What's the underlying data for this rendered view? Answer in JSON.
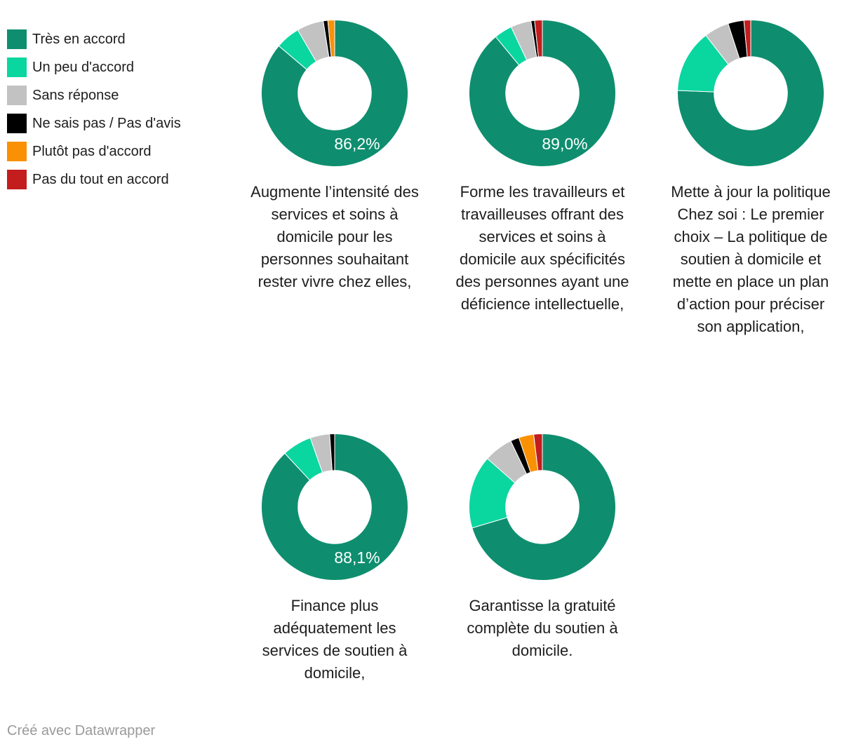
{
  "page": {
    "background": "#ffffff"
  },
  "legend": {
    "items": [
      {
        "label": "Très en accord",
        "color": "#0e8e6f"
      },
      {
        "label": "Un peu d'accord",
        "color": "#0ad6a0"
      },
      {
        "label": "Sans réponse",
        "color": "#c2c2c2"
      },
      {
        "label": "Ne sais pas / Pas d'avis",
        "color": "#000000"
      },
      {
        "label": "Plutôt pas d'accord",
        "color": "#fa9104"
      },
      {
        "label": "Pas du tout en accord",
        "color": "#c41d1d"
      }
    ]
  },
  "chart_data": {
    "type": "pie",
    "variant": "donut-small-multiples",
    "donut_hole_ratio": 0.5,
    "legend_position": "top-left",
    "start_angle": "12-oclock-clockwise",
    "categories": [
      "Très en accord",
      "Un peu d'accord",
      "Sans réponse",
      "Ne sais pas / Pas d'avis",
      "Plutôt pas d'accord",
      "Pas du tout en accord"
    ],
    "colors": [
      "#0e8e6f",
      "#0ad6a0",
      "#c2c2c2",
      "#000000",
      "#fa9104",
      "#c41d1d"
    ],
    "value_unit": "%",
    "charts": [
      {
        "title": "Augmente l’intensité des services et soins à domicile pour les personnes souhaitant rester vivre chez elles,",
        "center_label": "86,2%",
        "values": [
          86.2,
          5.4,
          5.9,
          1.0,
          1.5,
          0
        ]
      },
      {
        "title": "Forme les travailleurs et travailleuses offrant des services et soins à domicile aux spécificités des personnes ayant une déficience intellectuelle,",
        "center_label": "89,0%",
        "values": [
          89.0,
          4.0,
          4.5,
          0.8,
          0,
          1.7
        ]
      },
      {
        "title": "Mette à jour la politique Chez soi : Le premier choix – La politique de soutien à domicile et mette en place un plan d’action pour préciser son application,",
        "center_label": "",
        "values": [
          75.6,
          13.9,
          5.5,
          3.5,
          0,
          1.5
        ]
      },
      {
        "title": "Finance plus adéquatement les services de soutien à domicile,",
        "center_label": "88,1%",
        "values": [
          88.1,
          6.5,
          4.3,
          1.1,
          0,
          0
        ]
      },
      {
        "title": "Garantisse la gratuité complète du soutien à domicile.",
        "center_label": "",
        "values": [
          70.4,
          16.1,
          6.4,
          1.9,
          3.3,
          1.9
        ]
      }
    ]
  },
  "footer": {
    "credit": "Créé avec Datawrapper"
  }
}
